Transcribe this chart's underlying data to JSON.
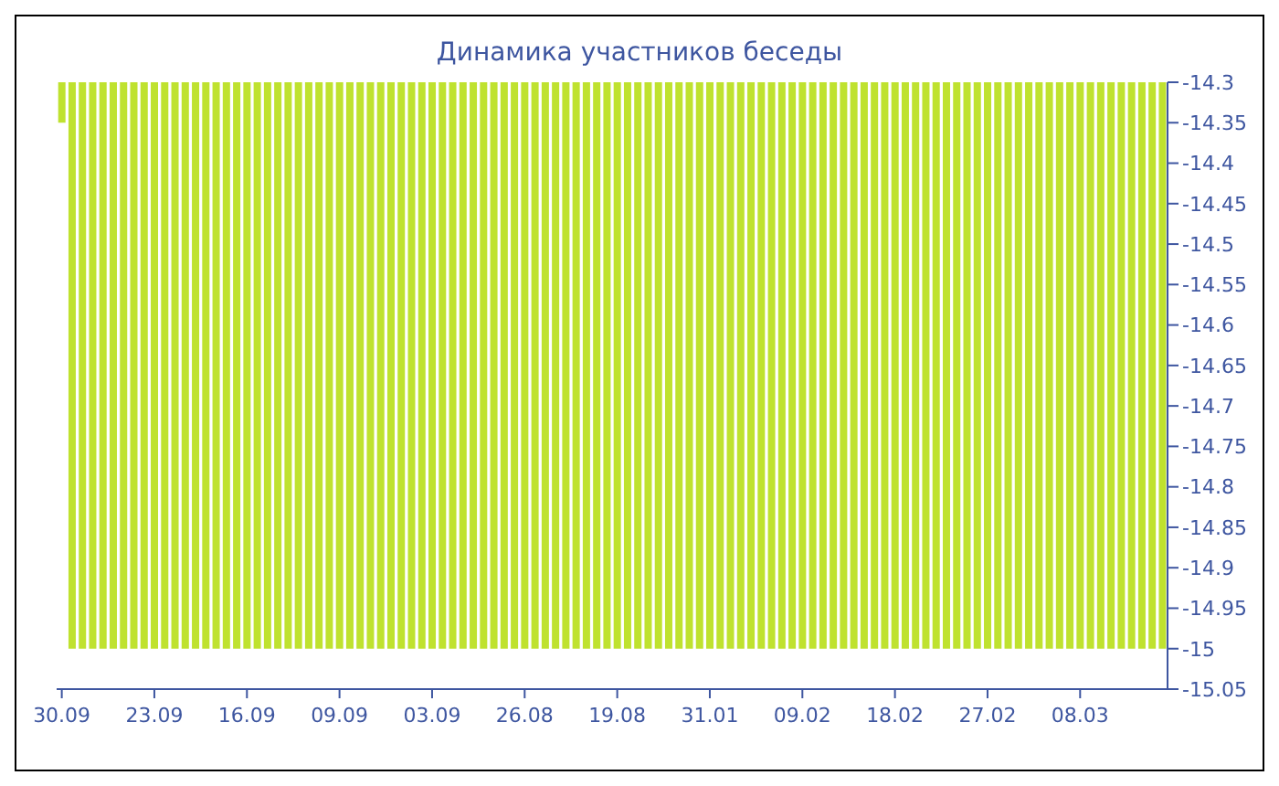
{
  "chart_data": {
    "type": "bar",
    "title": "Динамика участников беседы",
    "categories": [
      "30.09",
      null,
      null,
      null,
      null,
      null,
      null,
      null,
      null,
      "23.09",
      null,
      null,
      null,
      null,
      null,
      null,
      null,
      null,
      "16.09",
      null,
      null,
      null,
      null,
      null,
      null,
      null,
      null,
      "09.09",
      null,
      null,
      null,
      null,
      null,
      null,
      null,
      null,
      "03.09",
      null,
      null,
      null,
      null,
      null,
      null,
      null,
      null,
      "26.08",
      null,
      null,
      null,
      null,
      null,
      null,
      null,
      null,
      "19.08",
      null,
      null,
      null,
      null,
      null,
      null,
      null,
      null,
      "31.01",
      null,
      null,
      null,
      null,
      null,
      null,
      null,
      null,
      "09.02",
      null,
      null,
      null,
      null,
      null,
      null,
      null,
      null,
      "18.02",
      null,
      null,
      null,
      null,
      null,
      null,
      null,
      null,
      "27.02",
      null,
      null,
      null,
      null,
      null,
      null,
      null,
      null,
      "08.03",
      null,
      null,
      null,
      null,
      null,
      null,
      null,
      null
    ],
    "values": [
      -14.35,
      -15,
      -15,
      -15,
      -15,
      -15,
      -15,
      -15,
      -15,
      -15,
      -15,
      -15,
      -15,
      -15,
      -15,
      -15,
      -15,
      -15,
      -15,
      -15,
      -15,
      -15,
      -15,
      -15,
      -15,
      -15,
      -15,
      -15,
      -15,
      -15,
      -15,
      -15,
      -15,
      -15,
      -15,
      -15,
      -15,
      -15,
      -15,
      -15,
      -15,
      -15,
      -15,
      -15,
      -15,
      -15,
      -15,
      -15,
      -15,
      -15,
      -15,
      -15,
      -15,
      -15,
      -15,
      -15,
      -15,
      -15,
      -15,
      -15,
      -15,
      -15,
      -15,
      -15,
      -15,
      -15,
      -15,
      -15,
      -15,
      -15,
      -15,
      -15,
      -15,
      -15,
      -15,
      -15,
      -15,
      -15,
      -15,
      -15,
      -15,
      -15,
      -15,
      -15,
      -15,
      -15,
      -15,
      -15,
      -15,
      -15,
      -15,
      -15,
      -15,
      -15,
      -15,
      -15,
      -15,
      -15,
      -15,
      -15,
      -15,
      -15,
      -15,
      -15,
      -15,
      -15,
      -15,
      -15
    ],
    "color": "#bfe22f",
    "ylim": [
      -15.05,
      -14.3
    ],
    "yticks": [
      -14.3,
      -14.35,
      -14.4,
      -14.45,
      -14.5,
      -14.55,
      -14.6,
      -14.65,
      -14.7,
      -14.75,
      -14.8,
      -14.85,
      -14.9,
      -14.95,
      -15,
      -15.05
    ]
  }
}
